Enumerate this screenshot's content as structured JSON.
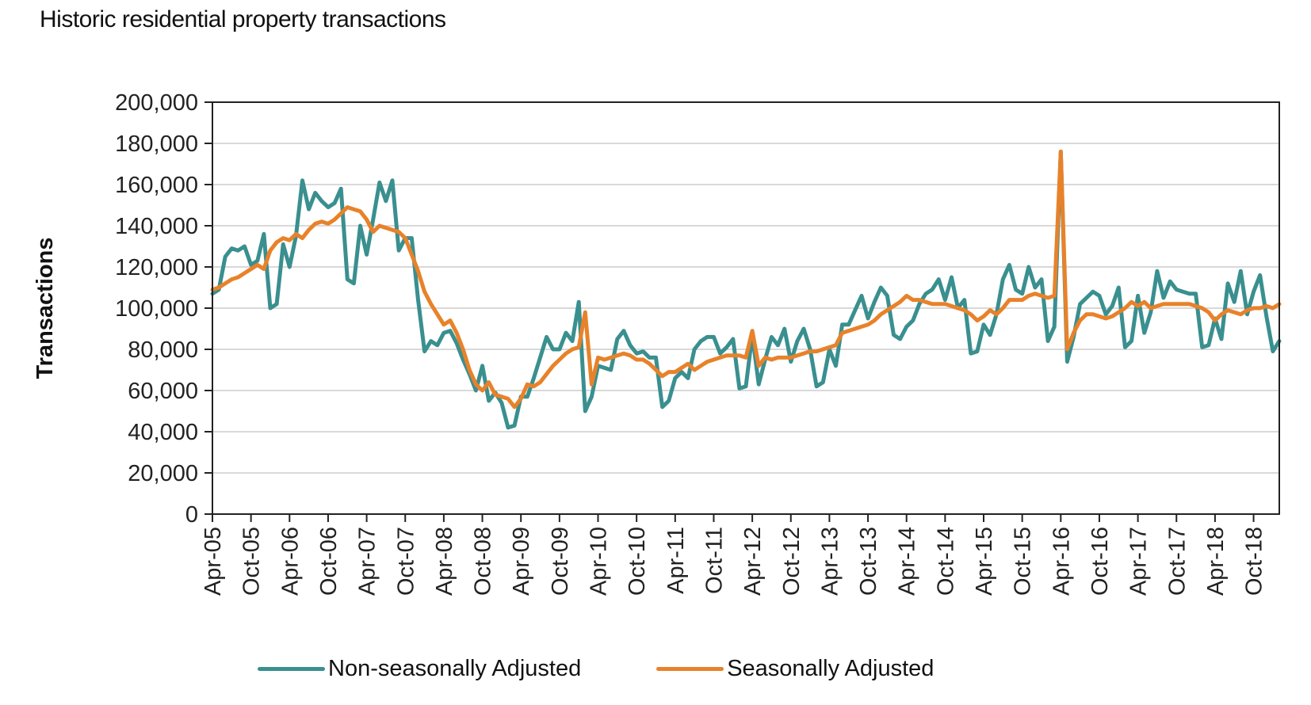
{
  "title": "Historic residential property transactions",
  "colors": {
    "non_seasonal": "#3a8f8f",
    "seasonal": "#e8822a",
    "grid": "#d9d9d9",
    "axis": "#222222"
  },
  "chart_data": {
    "type": "line",
    "title": "Historic residential property transactions",
    "xlabel": "",
    "ylabel": "Transactions",
    "ylim": [
      0,
      200000
    ],
    "yticks": [
      0,
      20000,
      40000,
      60000,
      80000,
      100000,
      120000,
      140000,
      160000,
      180000,
      200000
    ],
    "ytick_labels": [
      "0",
      "20,000",
      "40,000",
      "60,000",
      "80,000",
      "100,000",
      "120,000",
      "140,000",
      "160,000",
      "180,000",
      "200,000"
    ],
    "x_start": "Apr-05",
    "x_end": "Feb-19",
    "xtick_labels": [
      "Apr-05",
      "Oct-05",
      "Apr-06",
      "Oct-06",
      "Apr-07",
      "Oct-07",
      "Apr-08",
      "Oct-08",
      "Apr-09",
      "Oct-09",
      "Apr-10",
      "Oct-10",
      "Apr-11",
      "Oct-11",
      "Apr-12",
      "Oct-12",
      "Apr-13",
      "Oct-13",
      "Apr-14",
      "Oct-14",
      "Apr-15",
      "Oct-15",
      "Apr-16",
      "Oct-16",
      "Apr-17",
      "Oct-17",
      "Apr-18",
      "Oct-18"
    ],
    "xtick_interval_months": 6,
    "grid": "horizontal",
    "legend_position": "bottom",
    "series": [
      {
        "name": "Non-seasonally Adjusted",
        "color": "#3a8f8f",
        "values": [
          107000,
          109000,
          125000,
          129000,
          128000,
          130000,
          121000,
          123000,
          136000,
          100000,
          102000,
          131000,
          120000,
          135000,
          162000,
          148000,
          156000,
          152000,
          149000,
          151000,
          158000,
          114000,
          112000,
          140000,
          126000,
          143000,
          161000,
          152000,
          162000,
          128000,
          134000,
          134000,
          104000,
          79000,
          84000,
          82000,
          88000,
          89000,
          83000,
          75000,
          68000,
          60000,
          72000,
          55000,
          59000,
          54000,
          42000,
          43000,
          57000,
          57000,
          66000,
          76000,
          86000,
          80000,
          80000,
          88000,
          84000,
          103000,
          50000,
          57000,
          72000,
          71000,
          70000,
          85000,
          89000,
          82000,
          78000,
          79000,
          76000,
          76000,
          52000,
          55000,
          66000,
          69000,
          66000,
          80000,
          84000,
          86000,
          86000,
          78000,
          81000,
          85000,
          61000,
          62000,
          87000,
          63000,
          75000,
          86000,
          82000,
          90000,
          74000,
          84000,
          90000,
          80000,
          62000,
          64000,
          80000,
          72000,
          92000,
          92000,
          99000,
          106000,
          95000,
          103000,
          110000,
          106000,
          87000,
          85000,
          91000,
          94000,
          102000,
          107000,
          109000,
          114000,
          104000,
          115000,
          100000,
          104000,
          78000,
          79000,
          92000,
          87000,
          97000,
          114000,
          121000,
          109000,
          107000,
          120000,
          110000,
          114000,
          84000,
          91000,
          176000,
          74000,
          86000,
          102000,
          105000,
          108000,
          106000,
          97000,
          101000,
          110000,
          81000,
          84000,
          106000,
          88000,
          98000,
          118000,
          105000,
          113000,
          109000,
          108000,
          107000,
          107000,
          81000,
          82000,
          95000,
          85000,
          112000,
          103000,
          118000,
          97000,
          108000,
          116000,
          96000,
          79000,
          84000
        ],
        "note": "approximate monthly values read from chart"
      },
      {
        "name": "Seasonally Adjusted",
        "color": "#e8822a",
        "values": [
          109000,
          110000,
          112000,
          114000,
          115000,
          117000,
          119000,
          121000,
          119000,
          128000,
          132000,
          134000,
          133000,
          136000,
          134000,
          138000,
          141000,
          142000,
          141000,
          143000,
          146000,
          149000,
          148000,
          147000,
          143000,
          137000,
          140000,
          139000,
          138000,
          137000,
          134000,
          126000,
          118000,
          108000,
          102000,
          97000,
          92000,
          94000,
          88000,
          80000,
          70000,
          63000,
          60000,
          64000,
          58000,
          57000,
          56000,
          52000,
          56000,
          63000,
          62000,
          64000,
          68000,
          72000,
          75000,
          78000,
          80000,
          81000,
          98000,
          63000,
          76000,
          75000,
          76000,
          77000,
          78000,
          77000,
          75000,
          75000,
          73000,
          70000,
          67000,
          69000,
          69000,
          71000,
          73000,
          70000,
          72000,
          74000,
          75000,
          76000,
          77000,
          77000,
          77000,
          76000,
          89000,
          72000,
          76000,
          75000,
          76000,
          76000,
          76000,
          77000,
          78000,
          79000,
          79000,
          80000,
          81000,
          82000,
          88000,
          89000,
          90000,
          91000,
          92000,
          94000,
          97000,
          99000,
          101000,
          103000,
          106000,
          104000,
          104000,
          103000,
          102000,
          102000,
          102000,
          101000,
          100000,
          99000,
          97000,
          94000,
          96000,
          99000,
          97000,
          100000,
          104000,
          104000,
          104000,
          106000,
          107000,
          106000,
          105000,
          106000,
          176000,
          80000,
          88000,
          94000,
          97000,
          97000,
          96000,
          95000,
          96000,
          98000,
          100000,
          103000,
          101000,
          103000,
          100000,
          101000,
          102000,
          102000,
          102000,
          102000,
          102000,
          101000,
          100000,
          98000,
          94000,
          97000,
          99000,
          98000,
          97000,
          99000,
          100000,
          100000,
          101000,
          100000,
          102000
        ],
        "note": "approximate monthly values read from chart"
      }
    ]
  },
  "legend": {
    "items": [
      {
        "label": "Non-seasonally Adjusted",
        "color": "#3a8f8f"
      },
      {
        "label": "Seasonally Adjusted",
        "color": "#e8822a"
      }
    ]
  }
}
